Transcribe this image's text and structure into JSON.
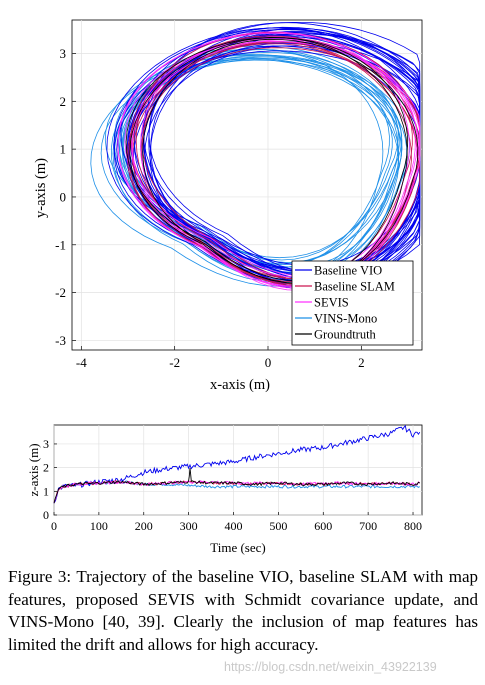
{
  "figure": {
    "caption": "Figure 3: Trajectory of the baseline VIO, baseline SLAM with map features, proposed SEVIS with Schmidt covariance update, and VINS-Mono [40, 39]. Clearly the inclusion of map features has limited the drift and allows for high accuracy.",
    "watermark": "https://blog.csdn.net/weixin_43922139"
  },
  "legend": [
    {
      "label": "Baseline VIO",
      "color": "#0000ee"
    },
    {
      "label": "Baseline SLAM",
      "color": "#cc1650"
    },
    {
      "label": "SEVIS",
      "color": "#ff33ff"
    },
    {
      "label": "VINS-Mono",
      "color": "#1e90e8"
    },
    {
      "label": "Groundtruth",
      "color": "#000000"
    }
  ],
  "chart_data": [
    {
      "type": "line",
      "title": "",
      "xlabel": "x-axis (m)",
      "ylabel": "y-axis (m)",
      "xlim": [
        -4.2,
        3.3
      ],
      "ylim": [
        -3.2,
        3.7
      ],
      "xticks": [
        -4,
        -2,
        0,
        2
      ],
      "yticks": [
        -3,
        -2,
        -1,
        0,
        1,
        2,
        3
      ],
      "grid": true,
      "legend_position": "bottom-right",
      "series": [
        {
          "name": "Baseline VIO",
          "loop": {
            "cx": 0.4,
            "cy": 1.1,
            "rx": 3.3,
            "ry": 2.3,
            "count": 26,
            "spread": 0.5
          }
        },
        {
          "name": "Baseline SLAM",
          "loop": {
            "cx": 0.2,
            "cy": 1.0,
            "rx": 3.1,
            "ry": 2.3,
            "count": 8,
            "spread": 0.3
          }
        },
        {
          "name": "SEVIS",
          "loop": {
            "cx": 0.2,
            "cy": 1.0,
            "rx": 3.1,
            "ry": 2.3,
            "count": 6,
            "spread": 0.3
          }
        },
        {
          "name": "VINS-Mono",
          "loop": {
            "cx": -0.2,
            "cy": 1.0,
            "rx": 3.1,
            "ry": 2.0,
            "count": 14,
            "spread": 0.5
          }
        },
        {
          "name": "Groundtruth",
          "loop": {
            "cx": 0.1,
            "cy": 1.0,
            "rx": 3.0,
            "ry": 2.3,
            "count": 3,
            "spread": 0.15
          }
        }
      ]
    },
    {
      "type": "line",
      "title": "",
      "xlabel": "Time (sec)",
      "ylabel": "z-axis (m)",
      "xlim": [
        0,
        820
      ],
      "ylim": [
        0,
        3.8
      ],
      "xticks": [
        0,
        100,
        200,
        300,
        400,
        500,
        600,
        700,
        800
      ],
      "yticks": [
        0,
        1,
        2,
        3
      ],
      "grid": true,
      "series": [
        {
          "name": "Baseline VIO",
          "x": [
            0,
            10,
            20,
            50,
            100,
            150,
            200,
            250,
            300,
            350,
            400,
            450,
            500,
            550,
            600,
            650,
            700,
            750,
            780,
            800,
            815
          ],
          "y": [
            0.5,
            1.1,
            1.2,
            1.25,
            1.4,
            1.5,
            1.8,
            1.95,
            2.05,
            2.15,
            2.25,
            2.45,
            2.6,
            2.75,
            2.85,
            3.05,
            3.25,
            3.45,
            3.7,
            3.4,
            3.5
          ]
        },
        {
          "name": "Baseline SLAM",
          "x": [
            0,
            10,
            20,
            50,
            100,
            150,
            200,
            250,
            300,
            350,
            400,
            450,
            500,
            550,
            600,
            650,
            700,
            750,
            800,
            815
          ],
          "y": [
            0.5,
            1.1,
            1.2,
            1.3,
            1.35,
            1.4,
            1.3,
            1.35,
            1.4,
            1.35,
            1.35,
            1.3,
            1.35,
            1.3,
            1.3,
            1.35,
            1.3,
            1.35,
            1.3,
            1.35
          ]
        },
        {
          "name": "SEVIS",
          "x": [
            0,
            10,
            20,
            50,
            100,
            150,
            200,
            250,
            300,
            350,
            400,
            450,
            500,
            550,
            600,
            650,
            700,
            750,
            800,
            815
          ],
          "y": [
            0.5,
            1.1,
            1.2,
            1.3,
            1.35,
            1.4,
            1.3,
            1.35,
            1.4,
            1.4,
            1.35,
            1.35,
            1.35,
            1.3,
            1.35,
            1.35,
            1.3,
            1.35,
            1.3,
            1.35
          ]
        },
        {
          "name": "VINS-Mono",
          "x": [
            0,
            10,
            20,
            50,
            100,
            150,
            200,
            250,
            300,
            350,
            400,
            450,
            500,
            550,
            600,
            650,
            700,
            750,
            800,
            815
          ],
          "y": [
            0.5,
            1.1,
            1.2,
            1.3,
            1.35,
            1.4,
            1.3,
            1.3,
            1.25,
            1.2,
            1.2,
            1.2,
            1.2,
            1.2,
            1.2,
            1.2,
            1.2,
            1.2,
            1.2,
            1.2
          ]
        },
        {
          "name": "Groundtruth",
          "x": [
            0,
            10,
            20,
            50,
            100,
            150,
            200,
            250,
            300,
            303,
            306,
            350,
            400,
            450,
            500,
            550,
            600,
            650,
            700,
            750,
            800,
            815
          ],
          "y": [
            0.5,
            1.1,
            1.2,
            1.3,
            1.35,
            1.4,
            1.3,
            1.35,
            1.4,
            2.0,
            1.4,
            1.35,
            1.35,
            1.3,
            1.35,
            1.3,
            1.3,
            1.35,
            1.3,
            1.35,
            1.3,
            1.35
          ]
        }
      ]
    }
  ]
}
